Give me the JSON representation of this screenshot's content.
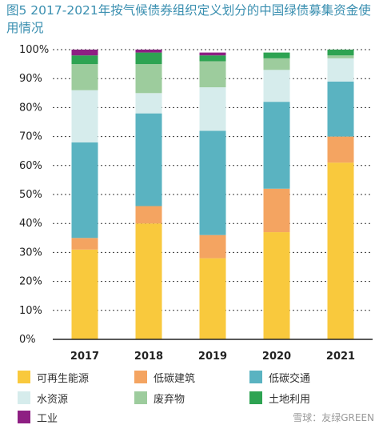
{
  "chart_data": {
    "type": "bar",
    "stacked": true,
    "title": "图5 2017-2021年按气候债券组织定义划分的中国绿债募集资金使用情况",
    "categories": [
      "2017",
      "2018",
      "2019",
      "2020",
      "2021"
    ],
    "ylim": [
      0,
      100
    ],
    "yticks": [
      "0%",
      "10%",
      "20%",
      "30%",
      "40%",
      "50%",
      "60%",
      "70%",
      "80%",
      "90%",
      "100%"
    ],
    "grid": true,
    "legend_position": "bottom",
    "series": [
      {
        "name": "可再生能源",
        "color": "#f9c93d",
        "values": [
          31,
          40,
          28,
          37,
          61
        ]
      },
      {
        "name": "低碳建筑",
        "color": "#f4a461",
        "values": [
          4,
          6,
          8,
          15,
          9
        ]
      },
      {
        "name": "低碳交通",
        "color": "#5ab3c1",
        "values": [
          33,
          32,
          36,
          30,
          19
        ]
      },
      {
        "name": "水资源",
        "color": "#d6ecec",
        "values": [
          18,
          7,
          15,
          11,
          8
        ]
      },
      {
        "name": "废弃物",
        "color": "#9dcc9d",
        "values": [
          9,
          10,
          9,
          4,
          1
        ]
      },
      {
        "name": "土地利用",
        "color": "#2ea352",
        "values": [
          3,
          4,
          2,
          2,
          2
        ]
      },
      {
        "name": "工业",
        "color": "#8e1f83",
        "values": [
          2,
          1,
          1,
          0,
          0
        ]
      }
    ]
  },
  "watermark": "雪球：友绿GREEN"
}
